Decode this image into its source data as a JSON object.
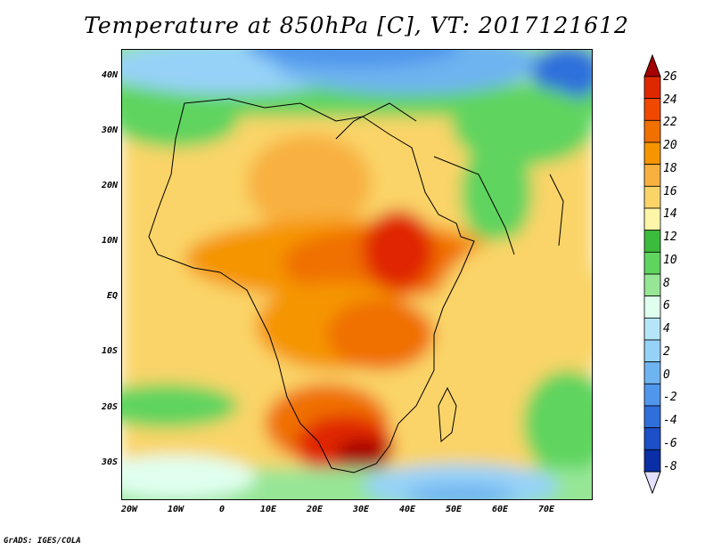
{
  "title": "Temperature at 850hPa [C], VT: 2017121612",
  "footer": "GrADS: IGES/COLA",
  "map": {
    "projection": "latlon",
    "lon_range": [
      -22,
      80
    ],
    "lat_range": [
      -37,
      45
    ],
    "lat_labels": [
      {
        "lat": 40,
        "text": "40N"
      },
      {
        "lat": 30,
        "text": "30N"
      },
      {
        "lat": 20,
        "text": "20N"
      },
      {
        "lat": 10,
        "text": "10N"
      },
      {
        "lat": 0,
        "text": "EQ"
      },
      {
        "lat": -10,
        "text": "10S"
      },
      {
        "lat": -20,
        "text": "20S"
      },
      {
        "lat": -30,
        "text": "30S"
      }
    ],
    "lon_labels": [
      {
        "lon": -20,
        "text": "20W"
      },
      {
        "lon": -10,
        "text": "10W"
      },
      {
        "lon": 0,
        "text": "0"
      },
      {
        "lon": 10,
        "text": "10E"
      },
      {
        "lon": 20,
        "text": "20E"
      },
      {
        "lon": 30,
        "text": "30E"
      },
      {
        "lon": 40,
        "text": "40E"
      },
      {
        "lon": 50,
        "text": "50E"
      },
      {
        "lon": 60,
        "text": "60E"
      },
      {
        "lon": 70,
        "text": "70E"
      }
    ]
  },
  "colorbar": {
    "labels": [
      "26",
      "24",
      "22",
      "20",
      "18",
      "16",
      "14",
      "12",
      "10",
      "8",
      "6",
      "4",
      "2",
      "0",
      "-2",
      "-4",
      "-6",
      "-8"
    ],
    "colors": [
      "#a50000",
      "#e02800",
      "#f04800",
      "#f07000",
      "#f59500",
      "#f8b040",
      "#fad468",
      "#fff5a8",
      "#3cbc3c",
      "#5fd45f",
      "#96e696",
      "#e0ffef",
      "#b4e6f8",
      "#96d2f8",
      "#6eb4f0",
      "#5096ec",
      "#2f6fdc",
      "#1c4fc8",
      "#0a2ea5",
      "#00125a"
    ]
  }
}
